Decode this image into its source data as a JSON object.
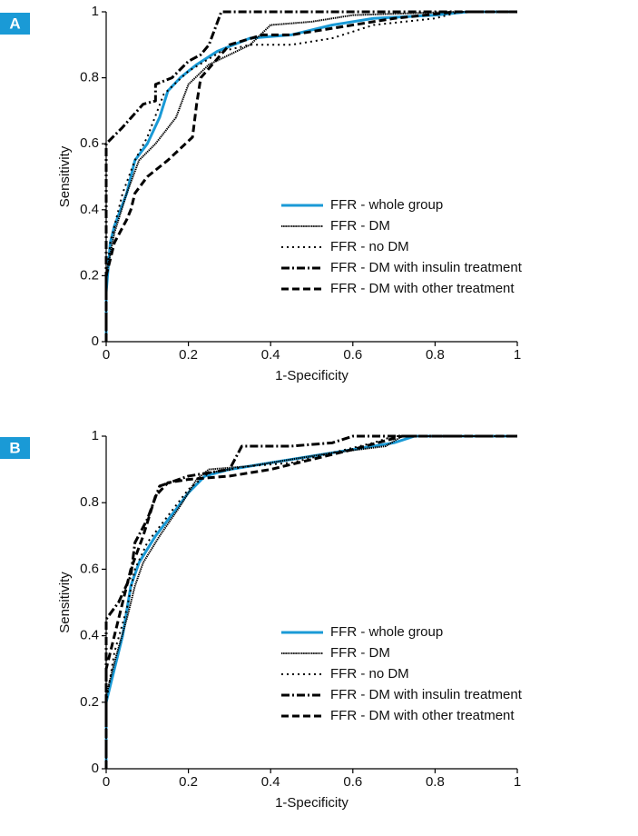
{
  "chart_data": [
    {
      "type": "line",
      "panel_label": "A",
      "xlabel": "1-Specificity",
      "ylabel": "Sensitivity",
      "xlim": [
        0,
        1
      ],
      "ylim": [
        0,
        1
      ],
      "xticks": [
        0,
        0.2,
        0.4,
        0.6,
        0.8,
        1
      ],
      "yticks": [
        0,
        0.2,
        0.4,
        0.6,
        0.8,
        1
      ],
      "legend": "lower right",
      "series": [
        {
          "name": "FFR - whole group",
          "color": "#1a9ad6",
          "line_style": "solid",
          "x": [
            0,
            0,
            0.01,
            0.02,
            0.05,
            0.07,
            0.1,
            0.13,
            0.15,
            0.18,
            0.22,
            0.27,
            0.35,
            0.45,
            0.55,
            0.65,
            0.8,
            0.88,
            1
          ],
          "values": [
            0,
            0.15,
            0.3,
            0.35,
            0.45,
            0.55,
            0.6,
            0.68,
            0.76,
            0.8,
            0.84,
            0.88,
            0.92,
            0.93,
            0.96,
            0.98,
            0.99,
            1,
            1
          ]
        },
        {
          "name": "FFR - DM",
          "color": "#000000",
          "line_style": "dense-dot",
          "x": [
            0,
            0,
            0.02,
            0.05,
            0.08,
            0.12,
            0.17,
            0.2,
            0.25,
            0.3,
            0.35,
            0.4,
            0.5,
            0.6,
            0.85,
            1
          ],
          "values": [
            0,
            0.2,
            0.33,
            0.45,
            0.55,
            0.6,
            0.68,
            0.78,
            0.84,
            0.87,
            0.9,
            0.96,
            0.97,
            0.99,
            1,
            1
          ]
        },
        {
          "name": "FFR - no DM",
          "color": "#000000",
          "line_style": "dot",
          "x": [
            0,
            0,
            0.01,
            0.04,
            0.07,
            0.1,
            0.14,
            0.2,
            0.28,
            0.35,
            0.45,
            0.55,
            0.65,
            0.8,
            0.86,
            1
          ],
          "values": [
            0,
            0.18,
            0.3,
            0.45,
            0.55,
            0.62,
            0.75,
            0.82,
            0.88,
            0.9,
            0.9,
            0.92,
            0.96,
            0.98,
            1,
            1
          ]
        },
        {
          "name": "FFR - DM with insulin treatment",
          "color": "#000000",
          "line_style": "dash-dot",
          "x": [
            0,
            0,
            0.04,
            0.09,
            0.12,
            0.12,
            0.16,
            0.2,
            0.23,
            0.25,
            0.28,
            1
          ],
          "values": [
            0,
            0.6,
            0.65,
            0.72,
            0.73,
            0.78,
            0.8,
            0.85,
            0.87,
            0.9,
            1,
            1
          ]
        },
        {
          "name": "FFR - DM with other treatment",
          "color": "#000000",
          "line_style": "dash",
          "x": [
            0,
            0,
            0.02,
            0.05,
            0.06,
            0.07,
            0.1,
            0.15,
            0.21,
            0.22,
            0.23,
            0.3,
            0.38,
            0.45,
            0.55,
            0.7,
            0.85,
            1
          ],
          "values": [
            0,
            0.2,
            0.3,
            0.37,
            0.4,
            0.45,
            0.5,
            0.55,
            0.62,
            0.72,
            0.8,
            0.9,
            0.93,
            0.93,
            0.95,
            0.98,
            1,
            1
          ]
        }
      ]
    },
    {
      "type": "line",
      "panel_label": "B",
      "xlabel": "1-Specificity",
      "ylabel": "Sensitivity",
      "xlim": [
        0,
        1
      ],
      "ylim": [
        0,
        1
      ],
      "xticks": [
        0,
        0.2,
        0.4,
        0.6,
        0.8,
        1
      ],
      "yticks": [
        0,
        0.2,
        0.4,
        0.6,
        0.8,
        1
      ],
      "legend": "lower right",
      "series": [
        {
          "name": "FFR - whole group",
          "color": "#1a9ad6",
          "line_style": "solid",
          "x": [
            0,
            0,
            0.02,
            0.04,
            0.06,
            0.08,
            0.12,
            0.17,
            0.2,
            0.24,
            0.3,
            0.4,
            0.5,
            0.6,
            0.7,
            0.75,
            1
          ],
          "values": [
            0,
            0.2,
            0.3,
            0.4,
            0.55,
            0.62,
            0.7,
            0.78,
            0.83,
            0.88,
            0.9,
            0.92,
            0.94,
            0.96,
            0.98,
            1,
            1
          ]
        },
        {
          "name": "FFR - DM",
          "color": "#000000",
          "line_style": "dense-dot",
          "x": [
            0,
            0,
            0.02,
            0.05,
            0.07,
            0.09,
            0.13,
            0.18,
            0.22,
            0.25,
            0.35,
            0.45,
            0.55,
            0.68,
            0.72,
            1
          ],
          "values": [
            0,
            0.22,
            0.32,
            0.45,
            0.55,
            0.62,
            0.7,
            0.79,
            0.87,
            0.9,
            0.91,
            0.93,
            0.95,
            0.97,
            1,
            1
          ]
        },
        {
          "name": "FFR - no DM",
          "color": "#000000",
          "line_style": "dot",
          "x": [
            0,
            0,
            0.02,
            0.05,
            0.07,
            0.1,
            0.15,
            0.2,
            0.25,
            0.35,
            0.45,
            0.55,
            0.65,
            0.7,
            1
          ],
          "values": [
            0,
            0.2,
            0.35,
            0.48,
            0.6,
            0.68,
            0.76,
            0.84,
            0.89,
            0.91,
            0.92,
            0.95,
            0.98,
            1,
            1
          ]
        },
        {
          "name": "FFR - DM with insulin treatment",
          "color": "#000000",
          "line_style": "dash-dot",
          "x": [
            0,
            0,
            0.03,
            0.06,
            0.07,
            0.1,
            0.13,
            0.2,
            0.3,
            0.33,
            0.45,
            0.55,
            0.6,
            1
          ],
          "values": [
            0,
            0.45,
            0.5,
            0.58,
            0.68,
            0.75,
            0.85,
            0.88,
            0.9,
            0.97,
            0.97,
            0.98,
            1,
            1
          ]
        },
        {
          "name": "FFR - DM with other treatment",
          "color": "#000000",
          "line_style": "dash",
          "x": [
            0,
            0,
            0.03,
            0.06,
            0.09,
            0.12,
            0.15,
            0.2,
            0.3,
            0.4,
            0.5,
            0.6,
            0.72,
            1
          ],
          "values": [
            0,
            0.3,
            0.45,
            0.6,
            0.7,
            0.82,
            0.86,
            0.87,
            0.88,
            0.9,
            0.93,
            0.96,
            1,
            1
          ]
        }
      ]
    }
  ]
}
